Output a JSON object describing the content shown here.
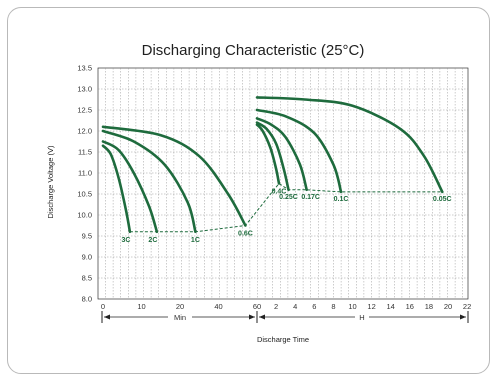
{
  "chart_data": {
    "type": "line",
    "title": "Discharging Characteristic (25°C)",
    "xlabel": "Discharge Time",
    "ylabel": "Discharge Voltage (V)",
    "ylim": [
      8.0,
      13.5
    ],
    "yticks": [
      "13.5",
      "13.0",
      "12.5",
      "12.0",
      "11.5",
      "11.0",
      "10.5",
      "10.0",
      "9.5",
      "9.0",
      "8.5",
      "8.0"
    ],
    "x_min_ticks": [
      "0",
      "10",
      "20",
      "40",
      "60"
    ],
    "x_hour_ticks": [
      "2",
      "4",
      "6",
      "8",
      "10",
      "12",
      "14",
      "16",
      "18",
      "20",
      "22"
    ],
    "range_labels": {
      "minutes": "Min",
      "hours": "H"
    },
    "grid": true,
    "colors": {
      "curve": "#1e6b3d",
      "end_line": "#1e6b3d",
      "grid": "#9a9a9a"
    },
    "series": [
      {
        "name": "3C",
        "x_unit": "min",
        "x": [
          0,
          2,
          4,
          6,
          7
        ],
        "y": [
          11.65,
          11.45,
          10.9,
          10.1,
          9.6
        ]
      },
      {
        "name": "2C",
        "x_unit": "min",
        "x": [
          0,
          4,
          8,
          12,
          14
        ],
        "y": [
          11.75,
          11.55,
          11.0,
          10.2,
          9.6
        ]
      },
      {
        "name": "1C",
        "x_unit": "min",
        "x": [
          0,
          8,
          16,
          24,
          28
        ],
        "y": [
          12.0,
          11.75,
          11.2,
          10.3,
          9.6
        ]
      },
      {
        "name": "0.6C",
        "x_unit": "min",
        "x": [
          0,
          15,
          30,
          45,
          54
        ],
        "y": [
          12.1,
          11.9,
          11.4,
          10.5,
          9.75
        ]
      },
      {
        "name": "0.4C",
        "x_unit": "h",
        "x": [
          0,
          0.6,
          1.4,
          2.0,
          2.3
        ],
        "y": [
          12.15,
          12.0,
          11.6,
          11.1,
          10.75
        ]
      },
      {
        "name": "0.25C",
        "x_unit": "h",
        "x": [
          0,
          1.0,
          2.0,
          2.8,
          3.3
        ],
        "y": [
          12.2,
          12.05,
          11.7,
          11.1,
          10.6
        ]
      },
      {
        "name": "0.17C",
        "x_unit": "h",
        "x": [
          0,
          1.5,
          3.0,
          4.5,
          5.2
        ],
        "y": [
          12.3,
          12.15,
          11.85,
          11.2,
          10.6
        ]
      },
      {
        "name": "0.1C",
        "x_unit": "h",
        "x": [
          0,
          3.0,
          6.0,
          8.0,
          8.8
        ],
        "y": [
          12.5,
          12.35,
          11.95,
          11.2,
          10.55
        ]
      },
      {
        "name": "0.05C",
        "x_unit": "h",
        "x": [
          0,
          5,
          10,
          15,
          17.5,
          19.4
        ],
        "y": [
          12.8,
          12.75,
          12.6,
          12.05,
          11.4,
          10.55
        ]
      }
    ]
  }
}
